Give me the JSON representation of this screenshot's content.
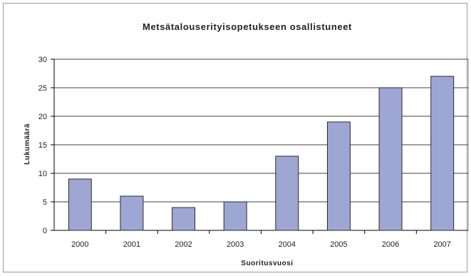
{
  "colors": {
    "bar_fill": "#9ea6d4",
    "bar_stroke": "#2b2b2b",
    "gridline": "#000000",
    "plot_border": "#808080",
    "frame_border": "#9a9a9a"
  },
  "chart_data": {
    "type": "bar",
    "title": "Metsätalouserityisopetukseen osallistuneet",
    "xlabel": "Suoritusvuosi",
    "ylabel": "Lukumäärä",
    "categories": [
      "2000",
      "2001",
      "2002",
      "2003",
      "2004",
      "2005",
      "2006",
      "2007"
    ],
    "values": [
      9,
      6,
      4,
      5,
      13,
      19,
      25,
      27
    ],
    "ylim": [
      0,
      30
    ],
    "yticks": [
      "0",
      "5",
      "10",
      "15",
      "20",
      "25",
      "30"
    ],
    "grid": true,
    "legend": "none"
  }
}
